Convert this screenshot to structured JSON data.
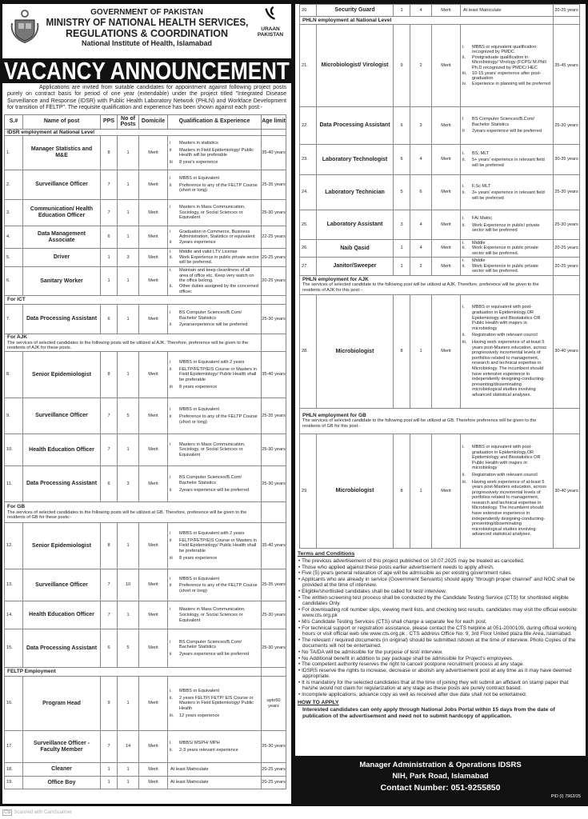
{
  "header": {
    "gov": "GOVERNMENT OF PAKISTAN",
    "ministry_line1": "MINISTRY OF NATIONAL HEALTH SERVICES,",
    "ministry_line2": "REGULATIONS & COORDINATION",
    "institute": "National Institute of Health, Islamabad",
    "logo_right_line1": "URAAN",
    "logo_right_line2": "PAKISTAN"
  },
  "banner": "VACANCY ANNOUNCEMENT",
  "intro": "Applications are invited from suitable candidates for appointment against following project posts purely on contract basis for period of one year (extendable) under the project titled \"Integrated Disease Surveillance and Response (IDSR) with Public Health Laboratory Network (PHLN) and Workface Development for transition of FELTP\". The requisite qualification and experience has been shown against each post:-",
  "columns": [
    "S.#",
    "Name of post",
    "PPS",
    "No of Posts",
    "Domicile",
    "Qualification & Experience",
    "Age limit"
  ],
  "left_table": [
    {
      "section": "IDSR employment at National Level"
    },
    {
      "s": "1.",
      "name": "Manager Statistics and M&E",
      "pps": "8",
      "posts": "1",
      "dom": "Merit",
      "qual": [
        [
          "i",
          "Masters in statistics"
        ],
        [
          "ii",
          "Masters in Field Epidemiology/ Public Health will be preferable"
        ],
        [
          "iii",
          "8 year's experience"
        ]
      ],
      "age": "35-40 years"
    },
    {
      "s": "2.",
      "name": "Surveillance Officer",
      "pps": "7",
      "posts": "1",
      "dom": "Merit",
      "qual": [
        [
          "i",
          "MBBS or Equivalent"
        ],
        [
          "ii",
          "Preference to any of the FELTP Course (short or long)"
        ]
      ],
      "age": "25-35 years"
    },
    {
      "s": "3.",
      "name": "Communication/ Health Education Officer",
      "pps": "7",
      "posts": "1",
      "dom": "Merit",
      "qual": [
        [
          "i",
          "Masters in Mass Communication, Sociology, or Social Sciences or Equivalent"
        ]
      ],
      "age": "25-30 years"
    },
    {
      "s": "4.",
      "name": "Data Management Associate",
      "pps": "6",
      "posts": "1",
      "dom": "Merit",
      "qual": [
        [
          "i",
          "Graduation in Commerce, Business Administration, Statistics or equivalent"
        ],
        [
          "ii",
          "2years experience"
        ]
      ],
      "age": "22-25 years"
    },
    {
      "s": "5.",
      "name": "Driver",
      "pps": "1",
      "posts": "3",
      "dom": "Merit",
      "qual": [
        [
          "i.",
          "Middle and valid LTV License"
        ],
        [
          "ii.",
          "Work Experience in public private sector will be preferred."
        ]
      ],
      "age": "20-25 years"
    },
    {
      "s": "6.",
      "name": "Sanitary Worker",
      "pps": "1",
      "posts": "1",
      "dom": "Merit",
      "qual": [
        [
          "i.",
          "Maintain and keep cleanliness of all area of office etc. Keep very watch on the office belong."
        ],
        [
          "ii.",
          "Other duties assigned by the concerned officer."
        ]
      ],
      "age": "20-25 years"
    },
    {
      "section": "For ICT"
    },
    {
      "s": "7.",
      "name": "Data Processing Assistant",
      "pps": "6",
      "posts": "1",
      "dom": "Merit",
      "qual": [
        [
          "i",
          "BS Computer Sciences/B.Com/ Bachelor Statistics"
        ],
        [
          "ii",
          "2yearsexperience will be preferred"
        ]
      ],
      "age": "25-30 years"
    },
    {
      "section": "For AJK",
      "note": "The services of selected candidates to the following posts will be utilized at AJK. Therefore, preference will be given to the residents of AJK for these posts."
    },
    {
      "s": "8.",
      "name": "Senior Epidemiologist",
      "pps": "8",
      "posts": "1",
      "dom": "Merit",
      "qual": [
        [
          "i",
          "MBBS or Equivalent with 2 years"
        ],
        [
          "ii",
          "FELTP/FETP/EIS Course or Masters in Field Epidemiology/ Public Health shall be preferable"
        ],
        [
          "iii",
          "8 years experience"
        ]
      ],
      "age": "35-40 years"
    },
    {
      "s": "9.",
      "name": "Surveillance Officer",
      "pps": "7",
      "posts": "5",
      "dom": "Merit",
      "qual": [
        [
          "i",
          "MBBS or Equivalent"
        ],
        [
          "ii",
          "Preference to any of the FELTP Course (short or long)"
        ]
      ],
      "age": "25-35 years"
    },
    {
      "s": "10.",
      "name": "Health Education Officer",
      "pps": "7",
      "posts": "1",
      "dom": "Merit",
      "qual": [
        [
          "i",
          "Masters in Mass Communication, Sociology, or Social Sciences or Equivalent"
        ]
      ],
      "age": "25-30 years"
    },
    {
      "s": "11.",
      "name": "Data Processing Assistant",
      "pps": "6",
      "posts": "3",
      "dom": "Merit",
      "qual": [
        [
          "i",
          "BS Computer Sciences/B.Com/ Bachelor Statistics"
        ],
        [
          "ii",
          "2years experience will be preferred"
        ]
      ],
      "age": "25-30 years"
    },
    {
      "section": "For GB",
      "note": "The services of selected candidates to the following posts will be utilized at GB. Therefore, preference will be given to the residents of GB for these posts:-"
    },
    {
      "s": "12.",
      "name": "Senior Epidemiologist",
      "pps": "8",
      "posts": "1",
      "dom": "Merit",
      "qual": [
        [
          "i",
          "MBBS or Equivalent with 2 years"
        ],
        [
          "ii",
          "FELTP/FETP/EIS Course or Masters in Field Epidemiology/ Public Health shall be preferable"
        ],
        [
          "iii",
          "8 years experience"
        ]
      ],
      "age": "35-40 years"
    },
    {
      "s": "13.",
      "name": "Surveillance Officer",
      "pps": "7",
      "posts": "10",
      "dom": "Merit",
      "qual": [
        [
          "i",
          "MBBS or Equivalent"
        ],
        [
          "ii",
          "Preference to any of the FELTP Course (short or long)"
        ]
      ],
      "age": "25-35 years"
    },
    {
      "s": "14.",
      "name": "Health Education Officer",
      "pps": "7",
      "posts": "1",
      "dom": "Merit",
      "qual": [
        [
          "i",
          "Masters in Mass Communication, Sociology, or Social Sciences or Equivalent"
        ]
      ],
      "age": "25-30 years"
    },
    {
      "s": "15.",
      "name": "Data Processing Assistant",
      "pps": "6",
      "posts": "5",
      "dom": "Merit",
      "qual": [
        [
          "i",
          "BS Computer Sciences/B.Com/ Bachelor Statistics"
        ],
        [
          "ii",
          "2years experience will be preferred"
        ]
      ],
      "age": "25-30 years"
    },
    {
      "section": "FELTP Employment"
    },
    {
      "s": "16.",
      "name": "Program Head",
      "pps": "9",
      "posts": "1",
      "dom": "Merit",
      "qual": [
        [
          "i.",
          "MBBS or Equivalent"
        ],
        [
          "ii.",
          "2 years FELTP/ FETP/ EIS Course or Masters in Field Epidemiology/ Public Health"
        ],
        [
          "iii.",
          "12 years experience"
        ]
      ],
      "age": "upto50 years"
    },
    {
      "s": "17.",
      "name": "Surveillance Officer - Faculty Member",
      "pps": "7",
      "posts": "14",
      "dom": "Merit",
      "qual": [
        [
          "i.",
          "MBBS/ MSPH/ MPH"
        ],
        [
          "ii.",
          "2-3 years relevant experience"
        ]
      ],
      "age": "25-30 years"
    },
    {
      "s": "18.",
      "name": "Cleaner",
      "pps": "1",
      "posts": "1",
      "dom": "Merit",
      "qual": "At least Matriculate",
      "age": "20-25 years"
    },
    {
      "s": "19.",
      "name": "Office Boy",
      "pps": "1",
      "posts": "1",
      "dom": "Merit",
      "qual": "At least Matriculate",
      "age": "20-25 years"
    }
  ],
  "right_table": [
    {
      "s": "20.",
      "name": "Security Guard",
      "pps": "1",
      "posts": "4",
      "dom": "Merit",
      "qual": "At least Matriculate",
      "age": "20-25 years"
    },
    {
      "section": "PHLN employment at National Level"
    },
    {
      "s": "21.",
      "name": "Microbiologist/ Virologist",
      "pps": "9",
      "posts": "2",
      "dom": "Merit",
      "qual": [
        [
          "i.",
          "MBBS or equivalent qualification recognized by PMDC"
        ],
        [
          "ii.",
          "Postgraduate qualification in Microbiology/ Virology (FCPS/ M.Phil/ Ph.D recognized by PMDC/ HEC"
        ],
        [
          "iii.",
          "10-15 years' experience after post-graduation"
        ],
        [
          "iv.",
          "Experience in planning will be preferred"
        ]
      ],
      "age": "35-45 years"
    },
    {
      "s": "22.",
      "name": "Data Processing Assistant",
      "pps": "6",
      "posts": "3",
      "dom": "Merit",
      "qual": [
        [
          "I",
          "BS Computer Sciences/B.Com/ Bachelor Statistics"
        ],
        [
          "Ii",
          "2years experience will be preferred"
        ]
      ],
      "age": "25-30 years"
    },
    {
      "s": "23.",
      "name": "Laboratory Technologist",
      "pps": "6",
      "posts": "4",
      "dom": "Merit",
      "qual": [
        [
          "i.",
          "BS, MLT"
        ],
        [
          "ii.",
          "5+ years' experience in relevant field will be preferred"
        ]
      ],
      "age": "30-35 years"
    },
    {
      "s": "24.",
      "name": "Laboratory Technician",
      "pps": "5",
      "posts": "6",
      "dom": "Merit",
      "qual": [
        [
          "i.",
          "F.Sc MLT"
        ],
        [
          "ii.",
          "3+ years' experience in relevant field will be preferred"
        ]
      ],
      "age": "25-30 years"
    },
    {
      "s": "25.",
      "name": "Laboratory Assistant",
      "pps": "3",
      "posts": "4",
      "dom": "Merit",
      "qual": [
        [
          "i.",
          "FA/ Matric"
        ],
        [
          "ii.",
          "Work Experience in public/ private sector will be preferred"
        ]
      ],
      "age": "25-30 years"
    },
    {
      "s": "26.",
      "name": "Naib Qasid",
      "pps": "1",
      "posts": "4",
      "dom": "Merit",
      "qual": [
        [
          "i.",
          "Middle"
        ],
        [
          "ii.",
          "Work Experience in public private sector will be preferred."
        ]
      ],
      "age": "20-25 years"
    },
    {
      "s": "27.",
      "name": "Janitor/Sweeper",
      "pps": "1",
      "posts": "2",
      "dom": "Merit",
      "qual": [
        [
          "i.",
          "Middle"
        ],
        [
          "ii.",
          "Work Experience in public private sector will be preferred."
        ]
      ],
      "age": "20-25 years"
    },
    {
      "section": "PHLN employment for AJK",
      "note": "The services of selected candidate to the following post will be utilized at AJK. Therefore, preference will be given to the residents of AJK for this post:-"
    },
    {
      "s": "28.",
      "name": "Microbiologist",
      "pps": "8",
      "posts": "1",
      "dom": "Merit",
      "qual": [
        [
          "i.",
          "MBBS or equivalent with post-graduation in Epidemiology,OR Epidemiology and Biostatistics OR Public Health with majors in microbiology"
        ],
        [
          "ii.",
          "Registration with relevant council"
        ],
        [
          "iii.",
          "Having work experience of at-least 5 years post-Masters education, across progressively incremental levels of portfolios related to management, research and technical expertise in Microbiology. The incumbent should have extensive experience in independently designing-conducting-presenting/disseminating microbiological studies involving advanced statistical analyses."
        ]
      ],
      "age": "30-40 years"
    },
    {
      "section": "PHLN employment for GB",
      "note": "The services of selected candidate to the following post will be utilized at GB. Therefore preference will be given to the residents of GB for this post:-"
    },
    {
      "s": "29.",
      "name": "Microbiologist",
      "pps": "8",
      "posts": "1",
      "dom": "Merit",
      "qual": [
        [
          "i.",
          "MBBS or equivalent with post-graduation in Epidemiology,OR Epidemiology and Biostatistics OR Public Health with majors in microbiology"
        ],
        [
          "ii.",
          "Registration with relevant council"
        ],
        [
          "iii.",
          "Having work experience of at-least 5 years post-Masters education, across progressively incremental levels of portfolios related to management, research and technical expertise in Microbiology. The incumbent should have extensive experience in independently designing-conducting-presenting/disseminating microbiological studies involving advanced statistical analyses."
        ]
      ],
      "age": "30-40 years"
    }
  ],
  "terms": {
    "title": "Terms and Conditions",
    "items": [
      "The previous advertisement of this project published on 10.07.2025 may be treated as cancelled.",
      "Those who applied against these posts earlier advertisement needs to apply afresh.",
      "Five (5) years general relaxation of age will be admissible as per existing government rules.",
      "Applicants who are already in service (Government Servants) should apply \"through proper channel\" and NOC shall be provided at the time of interview.",
      "Eligible/shortlisted candidates shall be called for test/ interview.",
      "The written screening test process shall be conducted by the Candidate Testing Service (CTS) for shortlisted eligible candidates Only.",
      "For downloading roll number slips, viewing merit lists, and checking test results, candidates may visit the official website: www.cts.org.pk",
      "M/s Candidate Testing Services (CTS) shall charge a separate fee for each post.",
      "For technical support or registration assistance, please contact the CTS helpline at 051-2000109, during official working hours or visit official web site www.cts.org.pk . CTS address Office No. 9, 3rd Floor United plaza Ble Area, Islamabad.",
      "The relevant / required documents (in original) should be submitted /shown at the time of interview. Photo Copies of the documents will not be entertained.",
      "No TA/DA will be admissible for the purpose of test/ interview.",
      "No Additional benefit in addition to pay package shall be admissible for Project's employees.",
      "The competent authority reserves the right to cancel/ postpone recruitment process at any stage.",
      "IDSRS reserve the rights to increase, decrease or abolish any advertisement post at any time as it may have deemed appropriate.",
      "It is mandatory for the selected candidates that at the time of joining they will submit an affidavit on stamp paper that he/she would not claim for regularization at any stage as these posts are purely contract based.",
      "Incomplete applications, advance copy as well as received after due date shall not be entertained."
    ]
  },
  "how_to_apply": {
    "title": "HOW TO APPLY",
    "text": "Interested candidates can only apply through National Jobs Portal within 15 days from the date of publication of the advertisement and need not to submit hardcopy of application."
  },
  "footer": {
    "line1": "Manager Administration & Operations IDSRS",
    "line2": "NIH, Park Road, Islamabad",
    "line3": "Contact Number: 051-9255850",
    "pid": "PID (I) 7962/25"
  },
  "scanner": {
    "badge": "CS",
    "text": "Scanned with CamScanner"
  }
}
